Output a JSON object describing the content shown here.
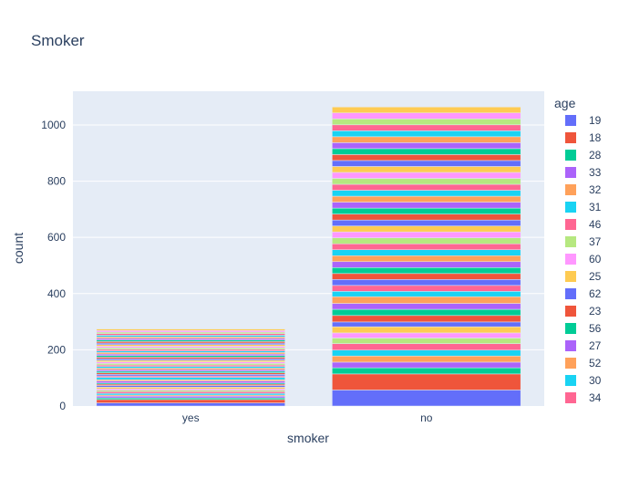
{
  "chart_data": {
    "type": "bar",
    "barmode": "stack",
    "title": "Smoker",
    "xlabel": "smoker",
    "ylabel": "count",
    "categories": [
      "yes",
      "no"
    ],
    "ylim": [
      0,
      1120
    ],
    "yticks": [
      0,
      200,
      400,
      600,
      800,
      1000
    ],
    "grid": true,
    "legend_position": "right",
    "legend_title": "age",
    "totals": {
      "yes": 274,
      "no": 1064
    },
    "series": [
      {
        "name": "19",
        "color": "#636efa",
        "values": [
          11,
          57
        ]
      },
      {
        "name": "18",
        "color": "#EF553B",
        "values": [
          12,
          57
        ]
      },
      {
        "name": "28",
        "color": "#00cc96",
        "values": [
          6,
          22
        ]
      },
      {
        "name": "33",
        "color": "#ab63fa",
        "values": [
          6,
          20
        ]
      },
      {
        "name": "32",
        "color": "#FFA15A",
        "values": [
          4,
          22
        ]
      },
      {
        "name": "31",
        "color": "#19d3f3",
        "values": [
          6,
          21
        ]
      },
      {
        "name": "46",
        "color": "#FF6692",
        "values": [
          6,
          23
        ]
      },
      {
        "name": "37",
        "color": "#B6E880",
        "values": [
          5,
          20
        ]
      },
      {
        "name": "60",
        "color": "#FF97FF",
        "values": [
          5,
          18
        ]
      },
      {
        "name": "25",
        "color": "#FECB52",
        "values": [
          6,
          22
        ]
      },
      {
        "name": "62",
        "color": "#636efa",
        "values": [
          6,
          17
        ]
      },
      {
        "name": "23",
        "color": "#EF553B",
        "values": [
          5,
          23
        ]
      },
      {
        "name": "56",
        "color": "#00cc96",
        "values": [
          4,
          22
        ]
      },
      {
        "name": "27",
        "color": "#ab63fa",
        "values": [
          7,
          21
        ]
      },
      {
        "name": "52",
        "color": "#FFA15A",
        "values": [
          5,
          24
        ]
      },
      {
        "name": "30",
        "color": "#19d3f3",
        "values": [
          8,
          19
        ]
      },
      {
        "name": "34",
        "color": "#FF6692",
        "values": [
          5,
          21
        ]
      }
    ]
  }
}
